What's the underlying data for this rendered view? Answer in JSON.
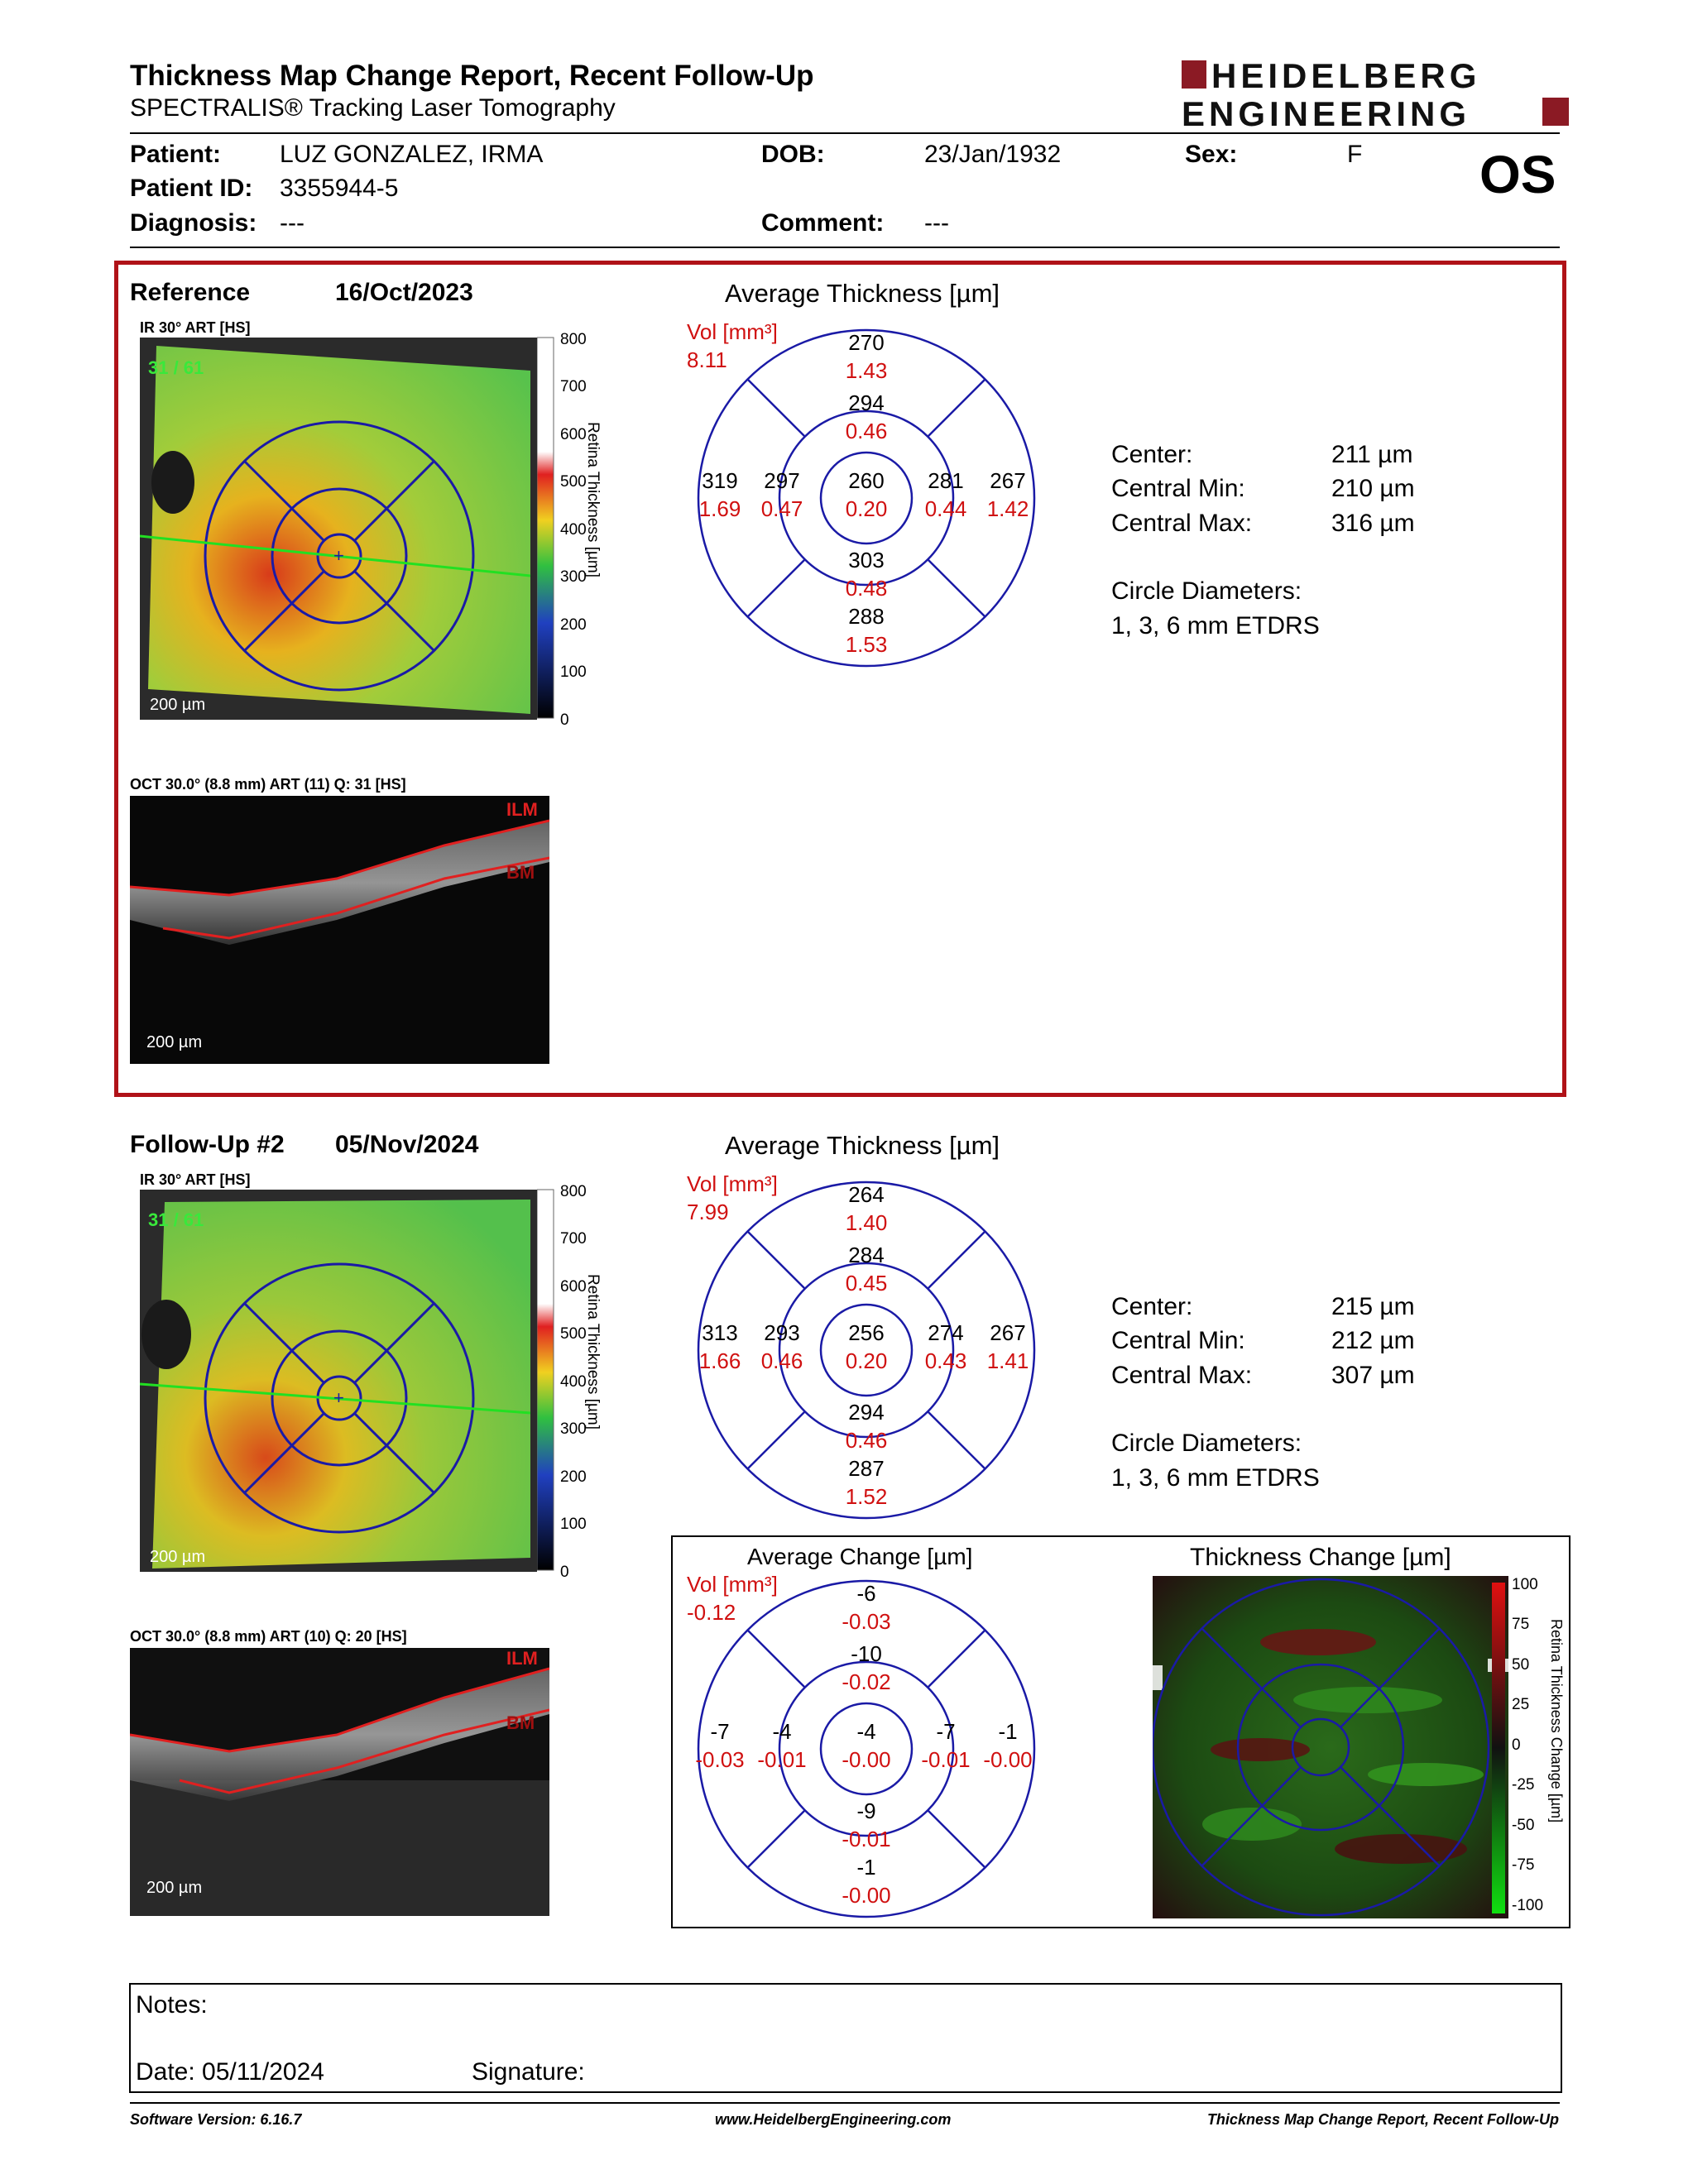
{
  "header": {
    "title": "Thickness Map Change Report, Recent Follow-Up",
    "subtitle": "SPECTRALIS® Tracking Laser Tomography",
    "logo_line1": "HEIDELBERG",
    "logo_line2": "ENGINEERING",
    "eye": "OS",
    "brand_color": "#8b1a24"
  },
  "patient": {
    "name_label": "Patient:",
    "name": "LUZ GONZALEZ, IRMA",
    "id_label": "Patient ID:",
    "id": "3355944-5",
    "diagnosis_label": "Diagnosis:",
    "diagnosis": "---",
    "dob_label": "DOB:",
    "dob": "23/Jan/1932",
    "comment_label": "Comment:",
    "comment": "---",
    "sex_label": "Sex:",
    "sex": "F"
  },
  "reference": {
    "label": "Reference",
    "date": "16/Oct/2023",
    "ir_tag": "IR 30° ART [HS]",
    "ir_overlay": "31 / 61",
    "ir_scalebar": "200 µm",
    "color_scale": {
      "ticks": [
        "800",
        "700",
        "600",
        "500",
        "400",
        "300",
        "200",
        "100",
        "0"
      ],
      "label": "Retina Thickness [µm]"
    },
    "oct_tag": "OCT 30.0° (8.8 mm) ART (11) Q: 31 [HS]",
    "oct_scalebar": "200 µm",
    "ilm": "ILM",
    "bm": "BM",
    "avg_title": "Average Thickness [µm]",
    "vol_label": "Vol [mm³]",
    "vol_total": "8.11",
    "sectors": {
      "outer_sup": [
        "270",
        "1.43"
      ],
      "inner_sup": [
        "294",
        "0.46"
      ],
      "outer_temp": [
        "319",
        "1.69"
      ],
      "inner_temp": [
        "297",
        "0.47"
      ],
      "center": [
        "260",
        "0.20"
      ],
      "inner_nas": [
        "281",
        "0.44"
      ],
      "outer_nas": [
        "267",
        "1.42"
      ],
      "inner_inf": [
        "303",
        "0.48"
      ],
      "outer_inf": [
        "288",
        "1.53"
      ]
    },
    "stats": [
      {
        "label": "Center:",
        "value": "211 µm"
      },
      {
        "label": "Central Min:",
        "value": "210 µm"
      },
      {
        "label": "Central Max:",
        "value": "316 µm"
      }
    ],
    "circle_label": "Circle Diameters:",
    "circle_value": "1, 3, 6 mm ETDRS"
  },
  "followup": {
    "label": "Follow-Up #2",
    "date": "05/Nov/2024",
    "ir_tag": "IR 30° ART [HS]",
    "ir_overlay": "31 / 61",
    "ir_scalebar": "200 µm",
    "color_scale": {
      "ticks": [
        "800",
        "700",
        "600",
        "500",
        "400",
        "300",
        "200",
        "100",
        "0"
      ],
      "label": "Retina Thickness [µm]"
    },
    "oct_tag": "OCT 30.0° (8.8 mm) ART (10) Q: 20 [HS]",
    "oct_scalebar": "200 µm",
    "ilm": "ILM",
    "bm": "BM",
    "avg_title": "Average Thickness [µm]",
    "vol_label": "Vol [mm³]",
    "vol_total": "7.99",
    "sectors": {
      "outer_sup": [
        "264",
        "1.40"
      ],
      "inner_sup": [
        "284",
        "0.45"
      ],
      "outer_temp": [
        "313",
        "1.66"
      ],
      "inner_temp": [
        "293",
        "0.46"
      ],
      "center": [
        "256",
        "0.20"
      ],
      "inner_nas": [
        "274",
        "0.43"
      ],
      "outer_nas": [
        "267",
        "1.41"
      ],
      "inner_inf": [
        "294",
        "0.46"
      ],
      "outer_inf": [
        "287",
        "1.52"
      ]
    },
    "stats": [
      {
        "label": "Center:",
        "value": "215 µm"
      },
      {
        "label": "Central Min:",
        "value": "212 µm"
      },
      {
        "label": "Central Max:",
        "value": "307 µm"
      }
    ],
    "circle_label": "Circle Diameters:",
    "circle_value": "1, 3, 6 mm ETDRS"
  },
  "change": {
    "avg_title": "Average Change [µm]",
    "vol_label": "Vol [mm³]",
    "vol_total": "-0.12",
    "sectors": {
      "outer_sup": [
        "-6",
        "-0.03"
      ],
      "inner_sup": [
        "-10",
        "-0.02"
      ],
      "outer_temp": [
        "-7",
        "-0.03"
      ],
      "inner_temp": [
        "-4",
        "-0.01"
      ],
      "center": [
        "-4",
        "-0.00"
      ],
      "inner_nas": [
        "-7",
        "-0.01"
      ],
      "outer_nas": [
        "-1",
        "-0.00"
      ],
      "inner_inf": [
        "-9",
        "-0.01"
      ],
      "outer_inf": [
        "-1",
        "-0.00"
      ]
    },
    "map_title": "Thickness Change [µm]",
    "map_scale": {
      "ticks": [
        "100",
        "75",
        "50",
        "25",
        "0",
        "-25",
        "-50",
        "-75",
        "-100"
      ],
      "label": "Retina Thickness Change [µm]"
    }
  },
  "notes": {
    "notes_label": "Notes:",
    "date_label": "Date: 05/11/2024",
    "signature_label": "Signature:"
  },
  "footer": {
    "version": "Software Version: 6.16.7",
    "website": "www.HeidelbergEngineering.com",
    "report": "Thickness Map Change Report, Recent Follow-Up"
  },
  "colors": {
    "grid": "#1a1aa6",
    "value_red": "#d01010",
    "ref_frame": "#b01218"
  }
}
